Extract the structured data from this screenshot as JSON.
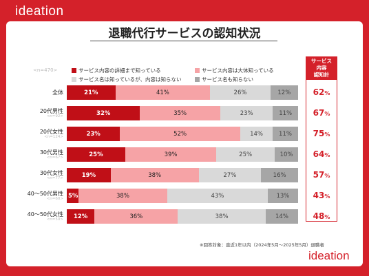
{
  "brand": "ideation",
  "title": "退職代行サービスの認知状況",
  "sample_total": "<n=470>",
  "total_header": [
    "サービス",
    "内容",
    "認知計"
  ],
  "footnote": "※回答対象：直近1年以内（2024年5月〜2025年5月）退職者",
  "colors": {
    "frame": "#d4212a",
    "s1": "#c00f17",
    "s2": "#f6a3a6",
    "s3": "#d9d9d9",
    "s4": "#a6a6a6"
  },
  "chart_data": {
    "type": "bar",
    "orientation": "horizontal",
    "stacked": true,
    "unit": "%",
    "title": "退職代行サービスの認知状況",
    "categories": [
      "全体",
      "20代男性",
      "20代女性",
      "30代男性",
      "30代女性",
      "40～50代男性",
      "40～50代女性"
    ],
    "category_n": [
      "",
      "<n=92>",
      "<n=124>",
      "<n=67>",
      "<n=77>",
      "<n=60>",
      "<n=50>"
    ],
    "series": [
      {
        "name": "サービス内容の詳細まで知っている",
        "values": [
          21,
          32,
          23,
          25,
          19,
          5,
          12
        ]
      },
      {
        "name": "サービス内容は大体知っている",
        "values": [
          41,
          35,
          52,
          39,
          38,
          38,
          36
        ]
      },
      {
        "name": "サービス名は知っているが、内容は知らない",
        "values": [
          26,
          23,
          14,
          25,
          27,
          43,
          38
        ]
      },
      {
        "name": "サービス名も知らない",
        "values": [
          12,
          11,
          11,
          10,
          16,
          13,
          14
        ]
      }
    ],
    "awareness_total": [
      62,
      67,
      75,
      64,
      57,
      43,
      48
    ],
    "legend_position": "top",
    "xlim": [
      0,
      100
    ]
  }
}
